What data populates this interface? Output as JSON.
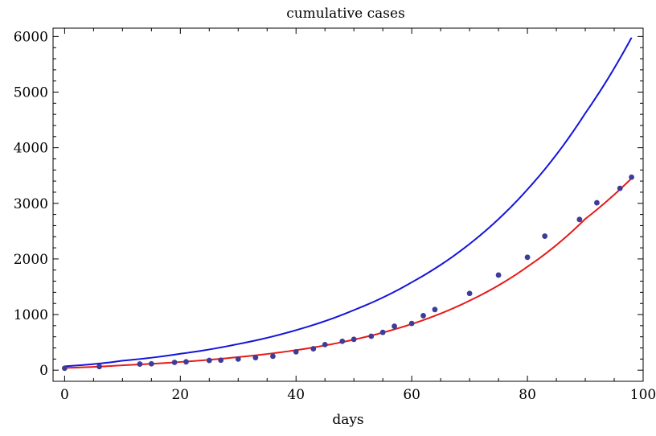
{
  "chart_data": {
    "type": "scatter",
    "title": "cumulative cases",
    "xlabel": "days",
    "ylabel": "",
    "xlim": [
      -2,
      100
    ],
    "ylim": [
      -200,
      6150
    ],
    "xticks": [
      0,
      20,
      40,
      60,
      80,
      100
    ],
    "xtick_labels": [
      "0",
      "20",
      "40",
      "60",
      "80",
      "100"
    ],
    "yticks": [
      0,
      1000,
      2000,
      3000,
      4000,
      5000,
      6000
    ],
    "ytick_labels": [
      "0",
      "1000",
      "2000",
      "3000",
      "4000",
      "5000",
      "6000"
    ],
    "grid": false,
    "colors": {
      "points": "#3d3d99",
      "fit": "#e61a1a",
      "model": "#1414d9"
    },
    "points": {
      "x": [
        0,
        6,
        13,
        15,
        19,
        21,
        25,
        27,
        30,
        33,
        36,
        40,
        43,
        45,
        48,
        50,
        53,
        55,
        57,
        60,
        62,
        64,
        70,
        75,
        80,
        83,
        89,
        92,
        96,
        98
      ],
      "y": [
        35,
        65,
        110,
        115,
        140,
        150,
        175,
        180,
        200,
        225,
        250,
        330,
        385,
        460,
        520,
        555,
        610,
        680,
        790,
        840,
        980,
        1090,
        1380,
        1710,
        2030,
        2410,
        2710,
        3010,
        3270,
        3470
      ]
    },
    "curves": [
      {
        "color": "#e61a1a",
        "x": [
          0,
          10,
          20,
          30,
          40,
          50,
          60,
          70,
          80,
          90,
          98
        ],
        "y": [
          40,
          88,
          148,
          235,
          360,
          550,
          830,
          1250,
          1860,
          2720,
          3450
        ]
      },
      {
        "color": "#1414d9",
        "x": [
          0,
          10,
          20,
          30,
          40,
          50,
          60,
          70,
          80,
          90,
          98
        ],
        "y": [
          70,
          170,
          295,
          470,
          720,
          1080,
          1580,
          2270,
          3250,
          4620,
          5980
        ]
      }
    ]
  }
}
